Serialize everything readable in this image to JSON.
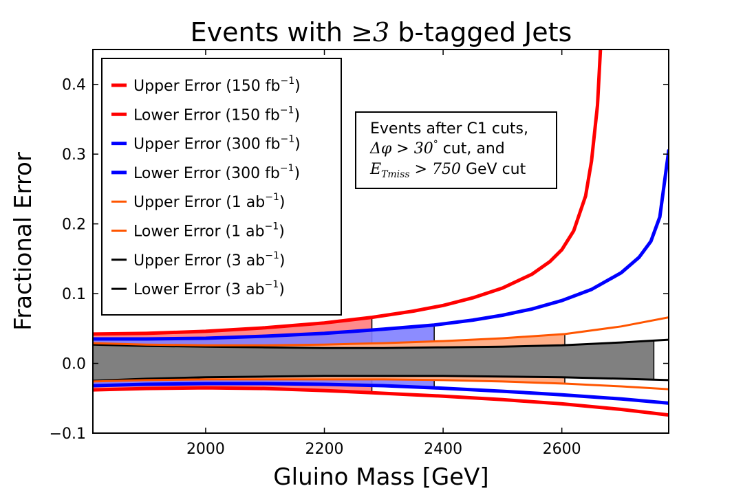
{
  "chart_data": {
    "type": "line",
    "title_prefix": "Events with ",
    "title_math_op": "≥",
    "title_math_num": "3",
    "title_suffix": " b-tagged Jets",
    "xlabel": "Gluino Mass [GeV]",
    "ylabel": "Fractional Error",
    "xlim": [
      1810,
      2780
    ],
    "ylim": [
      -0.1,
      0.45
    ],
    "xticks": [
      2000,
      2200,
      2400,
      2600
    ],
    "yticks": [
      -0.1,
      0.0,
      0.1,
      0.2,
      0.3,
      0.4
    ],
    "ytick_labels": [
      "−0.1",
      "0.0",
      "0.1",
      "0.2",
      "0.3",
      "0.4"
    ],
    "grid": false,
    "legend_position": "top-left",
    "legend": [
      {
        "base": "Upper Error (150 fb",
        "sup": "−1",
        "close": ")",
        "color": "#ff0000",
        "width": "thick"
      },
      {
        "base": "Lower Error (150 fb",
        "sup": "−1",
        "close": ")",
        "color": "#ff0000",
        "width": "thick"
      },
      {
        "base": "Upper Error (300 fb",
        "sup": "−1",
        "close": ")",
        "color": "#0000ff",
        "width": "thick"
      },
      {
        "base": "Lower Error (300 fb",
        "sup": "−1",
        "close": ")",
        "color": "#0000ff",
        "width": "thick"
      },
      {
        "base": "Upper Error (1 ab",
        "sup": "−1",
        "close": ")",
        "color": "#ff5500",
        "width": "thin"
      },
      {
        "base": "Lower Error (1 ab",
        "sup": "−1",
        "close": ")",
        "color": "#ff5500",
        "width": "thin"
      },
      {
        "base": "Upper Error (3 ab",
        "sup": "−1",
        "close": ")",
        "color": "#000000",
        "width": "thin"
      },
      {
        "base": "Lower Error (3 ab",
        "sup": "−1",
        "close": ")",
        "color": "#000000",
        "width": "thin"
      }
    ],
    "annotation": {
      "line1": "Events after C1 cuts,",
      "line2_math": "Δφ > 30",
      "line2_sup": "°",
      "line2_text": " cut, and",
      "line3_math": "E",
      "line3_sub": "Tmiss",
      "line3_math2": " > 750",
      "line3_text": " GeV cut"
    },
    "series": [
      {
        "name": "Upper Error (150 fb^-1)",
        "color": "#ff0000",
        "width": "thick",
        "band_end": 2280,
        "x": [
          1810,
          1900,
          2000,
          2100,
          2200,
          2280,
          2350,
          2400,
          2450,
          2500,
          2550,
          2580,
          2600,
          2620,
          2640,
          2650,
          2660,
          2665
        ],
        "y": [
          0.042,
          0.043,
          0.046,
          0.051,
          0.058,
          0.066,
          0.075,
          0.083,
          0.094,
          0.108,
          0.128,
          0.146,
          0.163,
          0.19,
          0.24,
          0.29,
          0.37,
          0.45
        ]
      },
      {
        "name": "Lower Error (150 fb^-1)",
        "color": "#ff0000",
        "width": "thick",
        "band_end": 2280,
        "x": [
          1810,
          1900,
          2000,
          2100,
          2200,
          2280,
          2350,
          2400,
          2500,
          2600,
          2700,
          2780
        ],
        "y": [
          -0.038,
          -0.036,
          -0.035,
          -0.036,
          -0.039,
          -0.042,
          -0.045,
          -0.047,
          -0.052,
          -0.058,
          -0.066,
          -0.074
        ]
      },
      {
        "name": "Upper Error (300 fb^-1)",
        "color": "#0000ff",
        "width": "thick",
        "band_end": 2385,
        "x": [
          1810,
          1900,
          2000,
          2100,
          2200,
          2300,
          2385,
          2450,
          2500,
          2550,
          2600,
          2650,
          2700,
          2730,
          2750,
          2765,
          2780
        ],
        "y": [
          0.035,
          0.035,
          0.036,
          0.039,
          0.043,
          0.049,
          0.055,
          0.062,
          0.069,
          0.078,
          0.09,
          0.106,
          0.13,
          0.152,
          0.175,
          0.21,
          0.305
        ]
      },
      {
        "name": "Lower Error (300 fb^-1)",
        "color": "#0000ff",
        "width": "thick",
        "band_end": 2385,
        "x": [
          1810,
          1900,
          2000,
          2100,
          2200,
          2300,
          2385,
          2500,
          2600,
          2700,
          2780
        ],
        "y": [
          -0.032,
          -0.03,
          -0.029,
          -0.029,
          -0.03,
          -0.032,
          -0.035,
          -0.04,
          -0.045,
          -0.051,
          -0.057
        ]
      },
      {
        "name": "Upper Error (1 ab^-1)",
        "color": "#ff5500",
        "width": "thin",
        "band_end": 2605,
        "x": [
          1810,
          1900,
          2000,
          2100,
          2200,
          2300,
          2400,
          2500,
          2605,
          2700,
          2780
        ],
        "y": [
          0.029,
          0.027,
          0.026,
          0.026,
          0.027,
          0.029,
          0.032,
          0.036,
          0.042,
          0.053,
          0.066
        ]
      },
      {
        "name": "Lower Error (1 ab^-1)",
        "color": "#ff5500",
        "width": "thin",
        "band_end": 2605,
        "x": [
          1810,
          1900,
          2000,
          2100,
          2200,
          2300,
          2400,
          2500,
          2605,
          2700,
          2780
        ],
        "y": [
          -0.026,
          -0.024,
          -0.023,
          -0.023,
          -0.023,
          -0.023,
          -0.024,
          -0.026,
          -0.029,
          -0.033,
          -0.037
        ]
      },
      {
        "name": "Upper Error (3 ab^-1)",
        "color": "#000000",
        "width": "thin",
        "band_end": 2755,
        "x": [
          1810,
          1900,
          2000,
          2100,
          2200,
          2300,
          2400,
          2500,
          2600,
          2700,
          2780
        ],
        "y": [
          0.027,
          0.025,
          0.024,
          0.023,
          0.022,
          0.022,
          0.023,
          0.024,
          0.026,
          0.03,
          0.034
        ]
      },
      {
        "name": "Lower Error (3 ab^-1)",
        "color": "#000000",
        "width": "thin",
        "band_end": 2755,
        "x": [
          1810,
          1900,
          2000,
          2100,
          2200,
          2300,
          2400,
          2500,
          2600,
          2700,
          2780
        ],
        "y": [
          -0.025,
          -0.022,
          -0.02,
          -0.019,
          -0.018,
          -0.018,
          -0.018,
          -0.019,
          -0.02,
          -0.022,
          -0.024
        ]
      }
    ],
    "bands": [
      {
        "name": "150 fb^-1 band",
        "upper": "Upper Error (150 fb^-1)",
        "lower": "Lower Error (150 fb^-1)",
        "end": 2280,
        "fill": "#ff7777",
        "opacity": 0.85
      },
      {
        "name": "300 fb^-1 band",
        "upper": "Upper Error (300 fb^-1)",
        "lower": "Lower Error (300 fb^-1)",
        "end": 2385,
        "fill": "#8080ff",
        "opacity": 0.9
      },
      {
        "name": "1 ab^-1 band",
        "upper": "Upper Error (1 ab^-1)",
        "lower": "Lower Error (1 ab^-1)",
        "end": 2605,
        "fill": "#ffb08a",
        "opacity": 1.0
      },
      {
        "name": "3 ab^-1 band",
        "upper": "Upper Error (3 ab^-1)",
        "lower": "Lower Error (3 ab^-1)",
        "end": 2755,
        "fill": "#808080",
        "opacity": 1.0
      }
    ]
  }
}
